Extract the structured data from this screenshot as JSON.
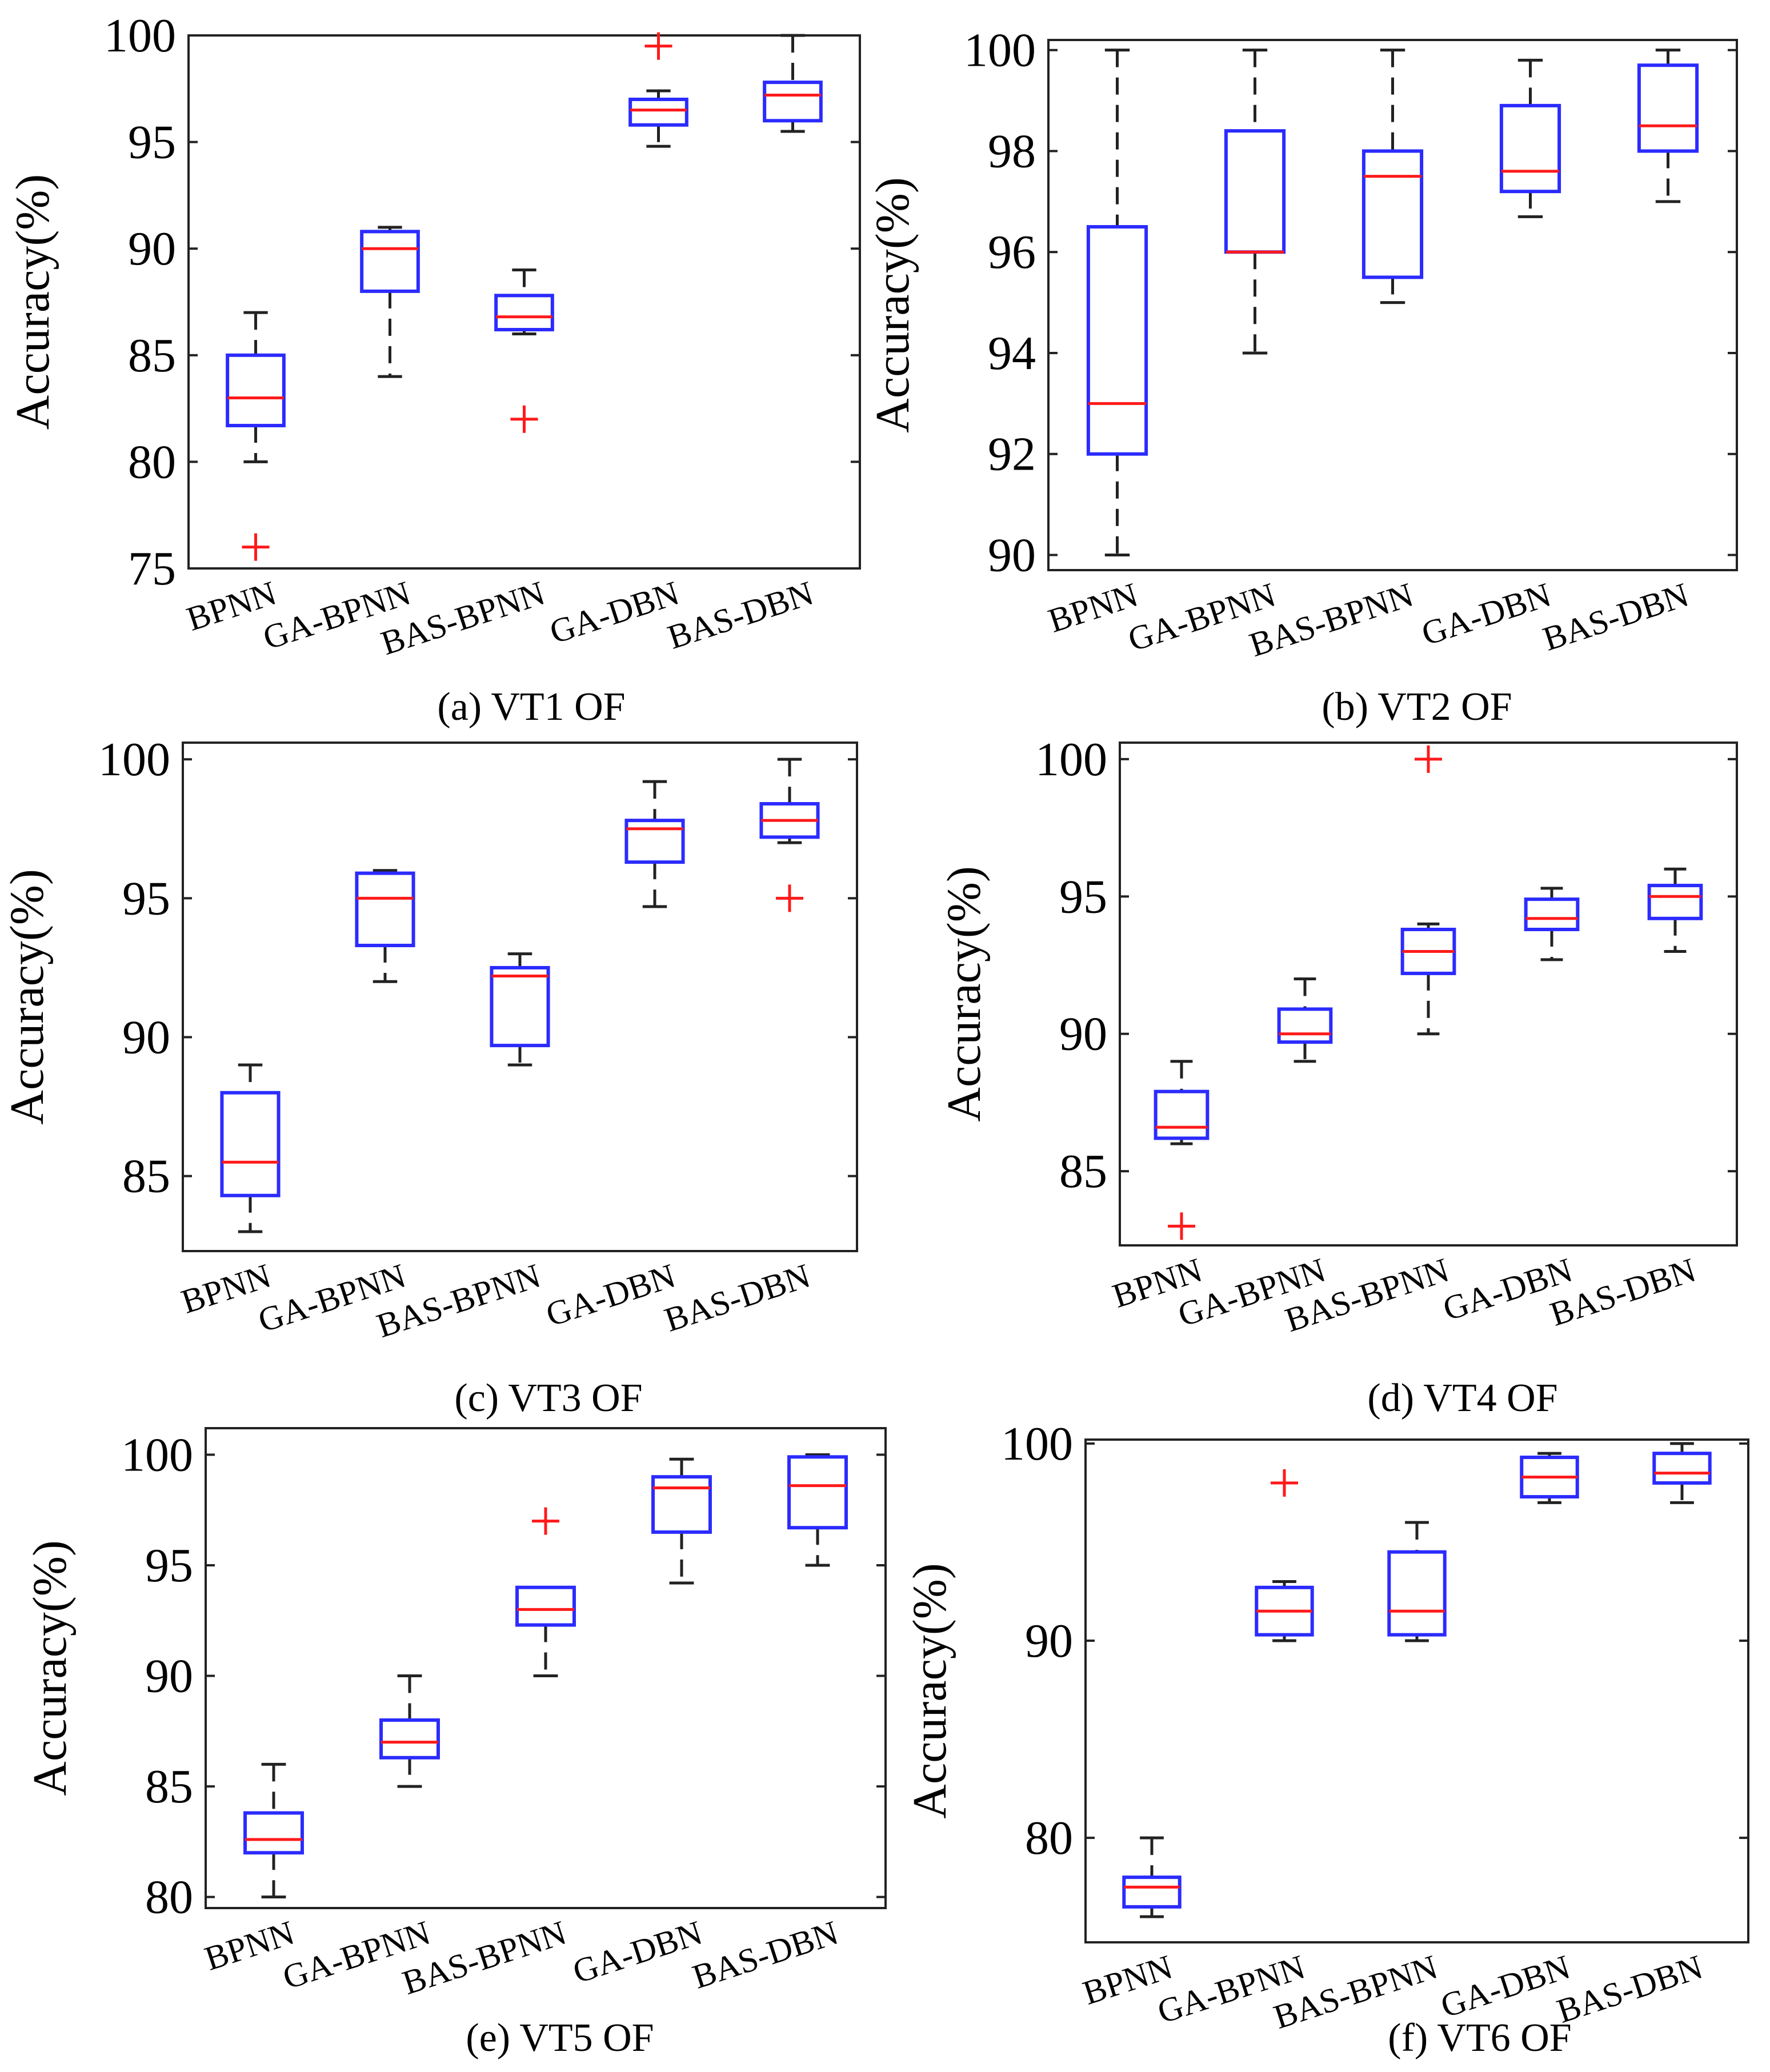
{
  "colors": {
    "box": "#2b2bff",
    "median": "#ff1a1a",
    "whisker": "#222222",
    "outlier": "#ff1a1a",
    "frame": "#222222"
  },
  "chart_data": [
    {
      "type": "box",
      "caption": "(a) VT1 OF",
      "ylabel": "Accuracy(%)",
      "ylim": [
        75,
        100
      ],
      "yticks": [
        75,
        80,
        85,
        90,
        95,
        100
      ],
      "categories": [
        "BPNN",
        "GA-BPNN",
        "BAS-BPNN",
        "GA-DBN",
        "BAS-DBN"
      ],
      "boxes": [
        {
          "min": 80,
          "q1": 81.7,
          "median": 83,
          "q3": 85,
          "max": 87,
          "outliers": [
            76
          ]
        },
        {
          "min": 84,
          "q1": 88,
          "median": 90,
          "q3": 90.8,
          "max": 91,
          "outliers": []
        },
        {
          "min": 86,
          "q1": 86.2,
          "median": 86.8,
          "q3": 87.8,
          "max": 89,
          "outliers": [
            82
          ]
        },
        {
          "min": 94.8,
          "q1": 95.8,
          "median": 96.5,
          "q3": 97,
          "max": 97.4,
          "outliers": [
            99.5
          ]
        },
        {
          "min": 95.5,
          "q1": 96,
          "median": 97.2,
          "q3": 97.8,
          "max": 100,
          "outliers": []
        }
      ]
    },
    {
      "type": "box",
      "caption": "(b) VT2 OF",
      "ylabel": "Accuracy(%)",
      "ylim": [
        89.7,
        100.2
      ],
      "yticks": [
        90,
        92,
        94,
        96,
        98,
        100
      ],
      "categories": [
        "BPNN",
        "GA-BPNN",
        "BAS-BPNN",
        "GA-DBN",
        "BAS-DBN"
      ],
      "boxes": [
        {
          "min": 90,
          "q1": 92,
          "median": 93,
          "q3": 96.5,
          "max": 100,
          "outliers": []
        },
        {
          "min": 94,
          "q1": 96,
          "median": 96,
          "q3": 98.4,
          "max": 100,
          "outliers": []
        },
        {
          "min": 95,
          "q1": 95.5,
          "median": 97.5,
          "q3": 98,
          "max": 100,
          "outliers": []
        },
        {
          "min": 96.7,
          "q1": 97.2,
          "median": 97.6,
          "q3": 98.9,
          "max": 99.8,
          "outliers": []
        },
        {
          "min": 97,
          "q1": 98,
          "median": 98.5,
          "q3": 99.7,
          "max": 100,
          "outliers": []
        }
      ]
    },
    {
      "type": "box",
      "caption": "(c) VT3 OF",
      "ylabel": "Accuracy(%)",
      "ylim": [
        82.3,
        100.6
      ],
      "yticks": [
        85,
        90,
        95,
        100
      ],
      "categories": [
        "BPNN",
        "GA-BPNN",
        "BAS-BPNN",
        "GA-DBN",
        "BAS-DBN"
      ],
      "boxes": [
        {
          "min": 83,
          "q1": 84.3,
          "median": 85.5,
          "q3": 88,
          "max": 89,
          "outliers": []
        },
        {
          "min": 92,
          "q1": 93.3,
          "median": 95,
          "q3": 95.9,
          "max": 96,
          "outliers": []
        },
        {
          "min": 89,
          "q1": 89.7,
          "median": 92.2,
          "q3": 92.5,
          "max": 93,
          "outliers": []
        },
        {
          "min": 94.7,
          "q1": 96.3,
          "median": 97.5,
          "q3": 97.8,
          "max": 99.2,
          "outliers": []
        },
        {
          "min": 97,
          "q1": 97.2,
          "median": 97.8,
          "q3": 98.4,
          "max": 100,
          "outliers": [
            95
          ]
        }
      ]
    },
    {
      "type": "box",
      "caption": "(d) VT4 OF",
      "ylabel": "Accuracy(%)",
      "ylim": [
        82.3,
        100.6
      ],
      "yticks": [
        85,
        90,
        95,
        100
      ],
      "categories": [
        "BPNN",
        "GA-BPNN",
        "BAS-BPNN",
        "GA-DBN",
        "BAS-DBN"
      ],
      "boxes": [
        {
          "min": 86,
          "q1": 86.2,
          "median": 86.6,
          "q3": 87.9,
          "max": 89,
          "outliers": [
            83
          ]
        },
        {
          "min": 89,
          "q1": 89.7,
          "median": 90,
          "q3": 90.9,
          "max": 92,
          "outliers": []
        },
        {
          "min": 90,
          "q1": 92.2,
          "median": 93,
          "q3": 93.8,
          "max": 94,
          "outliers": [
            100
          ]
        },
        {
          "min": 92.7,
          "q1": 93.8,
          "median": 94.2,
          "q3": 94.9,
          "max": 95.3,
          "outliers": []
        },
        {
          "min": 93,
          "q1": 94.2,
          "median": 95,
          "q3": 95.4,
          "max": 96,
          "outliers": []
        }
      ]
    },
    {
      "type": "box",
      "caption": "(e) VT5 OF",
      "ylabel": "Accuracy(%)",
      "ylim": [
        79.5,
        101.2
      ],
      "yticks": [
        80,
        85,
        90,
        95,
        100
      ],
      "categories": [
        "BPNN",
        "GA-BPNN",
        "BAS-BPNN",
        "GA-DBN",
        "BAS-DBN"
      ],
      "boxes": [
        {
          "min": 80,
          "q1": 82,
          "median": 82.6,
          "q3": 83.8,
          "max": 86,
          "outliers": []
        },
        {
          "min": 85,
          "q1": 86.3,
          "median": 87,
          "q3": 88,
          "max": 90,
          "outliers": []
        },
        {
          "min": 90,
          "q1": 92.3,
          "median": 93,
          "q3": 94,
          "max": 94,
          "outliers": [
            97
          ]
        },
        {
          "min": 94.2,
          "q1": 96.5,
          "median": 98.5,
          "q3": 99,
          "max": 99.8,
          "outliers": []
        },
        {
          "min": 95,
          "q1": 96.7,
          "median": 98.6,
          "q3": 99.9,
          "max": 100,
          "outliers": []
        }
      ]
    },
    {
      "type": "box",
      "caption": "(f) VT6 OF",
      "ylabel": "Accuracy(%)",
      "ylim": [
        74.7,
        100.2
      ],
      "yticks": [
        80,
        90,
        100
      ],
      "categories": [
        "BPNN",
        "GA-BPNN",
        "BAS-BPNN",
        "GA-DBN",
        "BAS-DBN"
      ],
      "boxes": [
        {
          "min": 76,
          "q1": 76.5,
          "median": 77.5,
          "q3": 78,
          "max": 80,
          "outliers": []
        },
        {
          "min": 90,
          "q1": 90.3,
          "median": 91.5,
          "q3": 92.7,
          "max": 93,
          "outliers": [
            98
          ]
        },
        {
          "min": 90,
          "q1": 90.3,
          "median": 91.5,
          "q3": 94.5,
          "max": 96,
          "outliers": []
        },
        {
          "min": 97,
          "q1": 97.3,
          "median": 98.3,
          "q3": 99.3,
          "max": 99.5,
          "outliers": []
        },
        {
          "min": 97,
          "q1": 98,
          "median": 98.5,
          "q3": 99.5,
          "max": 100,
          "outliers": []
        }
      ]
    }
  ]
}
